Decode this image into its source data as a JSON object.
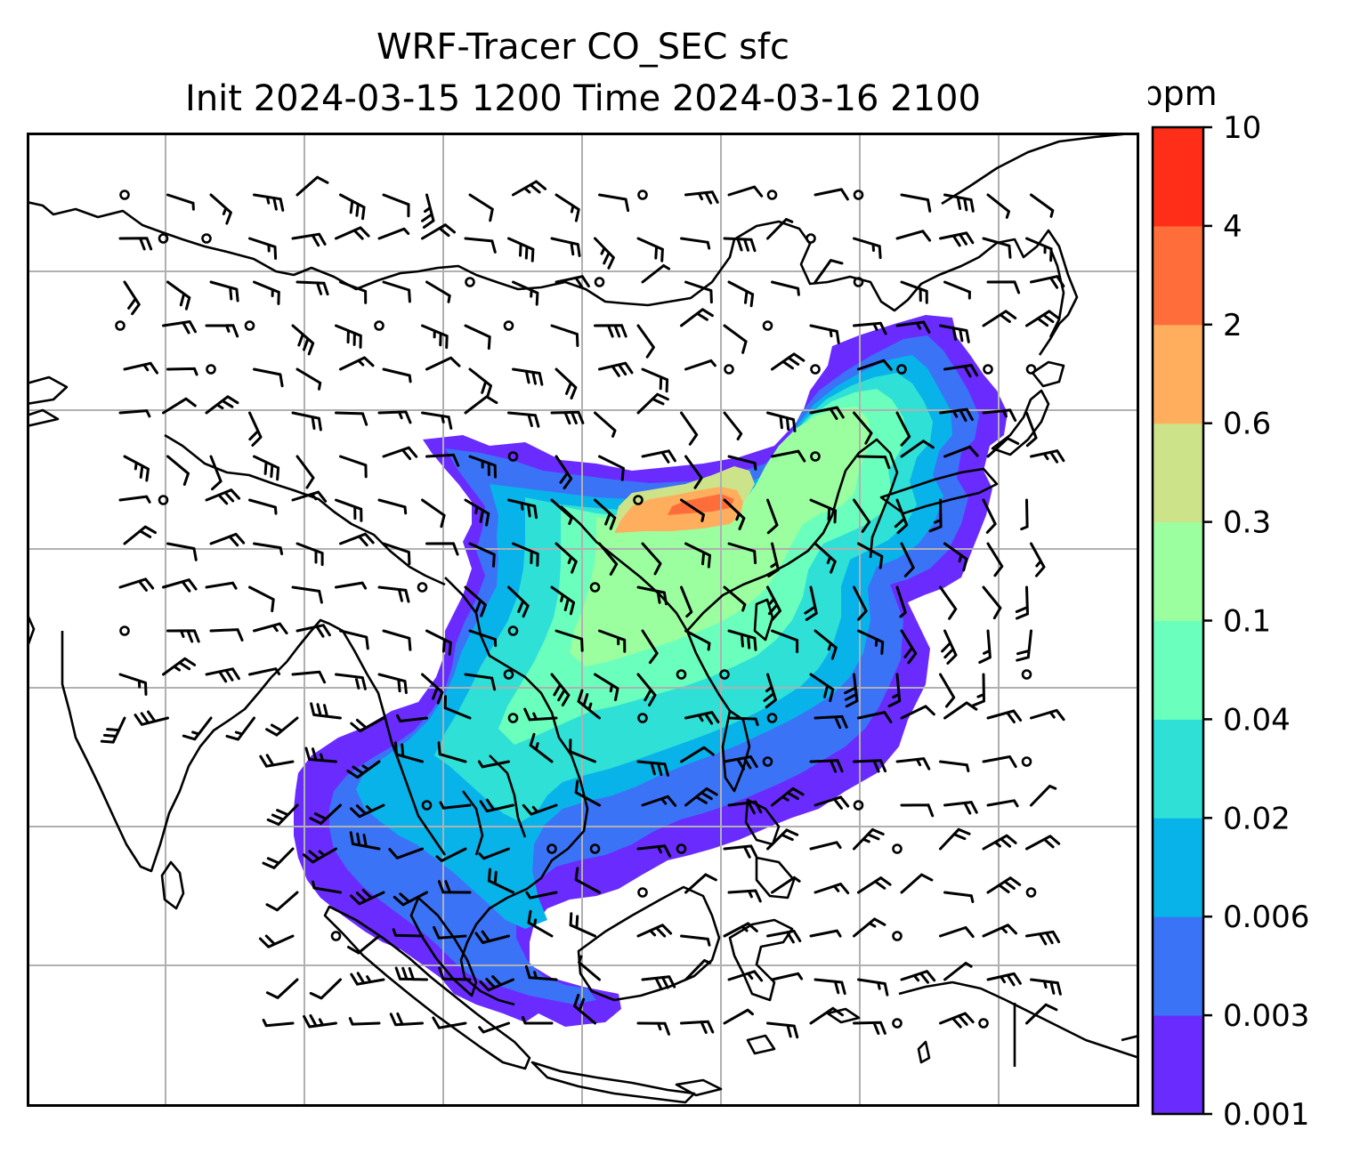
{
  "title": {
    "line1": "WRF-Tracer CO_SEC sfc",
    "line2": "Init 2024-03-15 1200 Time 2024-03-16 2100"
  },
  "colorbar": {
    "unit": "ppm",
    "levels": [
      "0.001",
      "0.003",
      "0.006",
      "0.02",
      "0.04",
      "0.1",
      "0.3",
      "0.6",
      "2",
      "4",
      "10"
    ],
    "colors": [
      "#6a2bff",
      "#3b73f7",
      "#08b3ea",
      "#2ee0d6",
      "#6affbc",
      "#9bffa0",
      "#cde38a",
      "#ffae5e",
      "#ff6e3a",
      "#ff2e18"
    ]
  },
  "map": {
    "grid_color": "#b0b0b0",
    "coastline_color": "#000000",
    "wind_barb_color": "#000000"
  }
}
